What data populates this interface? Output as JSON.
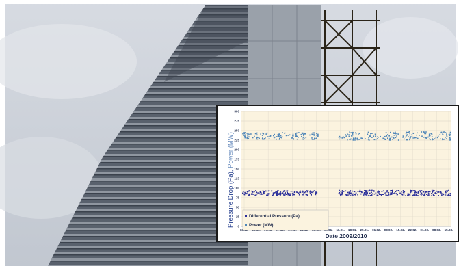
{
  "scene": {
    "subject": "high-rise building with horizontal louvres and scaffolding",
    "sky_color": "#c9ced6",
    "facade_color": "#5c6472",
    "scaffold_color": "#2a2418"
  },
  "chart_data": {
    "type": "scatter",
    "title": "",
    "xlabel": "Date 2009/2010",
    "ylabel_parts": [
      {
        "text": "Pressure Drop (Pa), ",
        "color": "#1f3a8a"
      },
      {
        "text": "Power (MW)",
        "color": "#6d8fbf"
      }
    ],
    "ylim": [
      0,
      300
    ],
    "yticks": [
      0,
      25,
      50,
      75,
      100,
      125,
      150,
      175,
      200,
      225,
      250,
      275,
      300
    ],
    "x_tick_labels": [
      "16.11.",
      "23.11.",
      "30.11.",
      "07.12.",
      "14.12.",
      "21.12.",
      "28.12.",
      "04.01.",
      "11.01.",
      "18.01.",
      "25.01.",
      "01.02.",
      "08.02.",
      "15.02.",
      "22.02.",
      "01.03.",
      "08.03.",
      "15.03."
    ],
    "grid": true,
    "legend_position": "bottom-left",
    "series": [
      {
        "name": "Differential Pressure (Pa)",
        "color": "#2a2f9a",
        "clusters": [
          {
            "x_start": "16.11.",
            "x_end": "28.12.",
            "y_center": 87,
            "y_spread": 6
          },
          {
            "x_start": "11.01.",
            "x_end": "15.03.",
            "y_center": 87,
            "y_spread": 7
          }
        ]
      },
      {
        "name": "Power (MW)",
        "color": "#4f86b8",
        "clusters": [
          {
            "x_start": "16.11.",
            "x_end": "28.12.",
            "y_center": 236,
            "y_spread": 9
          },
          {
            "x_start": "11.01.",
            "x_end": "15.03.",
            "y_center": 236,
            "y_spread": 11
          }
        ]
      }
    ]
  }
}
